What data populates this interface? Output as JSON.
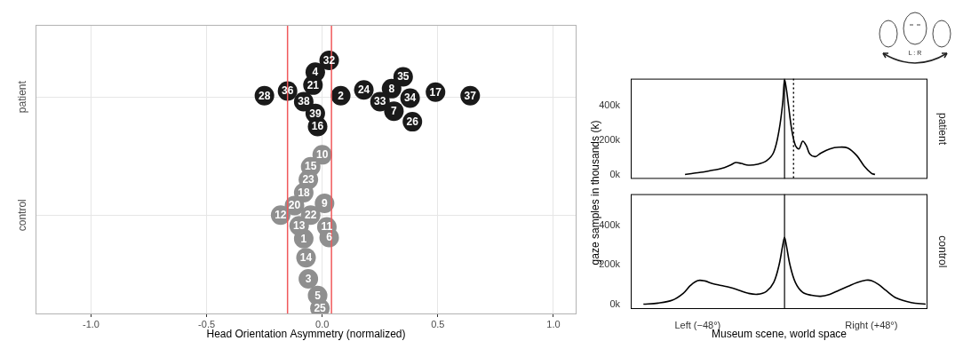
{
  "chart_data": [
    {
      "type": "scatter",
      "xlabel": "Head Orientation Asymmetry (normalized)",
      "xlim": [
        -1.24,
        1.1
      ],
      "xticks": [
        {
          "value": -1,
          "label": "-1.0"
        },
        {
          "value": -0.5,
          "label": "-0.5"
        },
        {
          "value": 0,
          "label": "0.0"
        },
        {
          "value": 0.5,
          "label": "0.5"
        },
        {
          "value": 1,
          "label": "1.0"
        }
      ],
      "ylim": [
        -0.84,
        1.61
      ],
      "yticks": [
        {
          "value": 0,
          "label": "control"
        },
        {
          "value": 1,
          "label": "patient"
        }
      ],
      "grid": true,
      "marker": "circle",
      "vlines": [
        {
          "value": -0.15,
          "color": "#f0595b"
        },
        {
          "value": 0.04,
          "color": "#f0595b"
        }
      ],
      "series": [
        {
          "color": "#1a1a1a",
          "labels": [
            "32",
            "4",
            "21",
            "36",
            "28",
            "2",
            "38",
            "39",
            "16",
            "24",
            "8",
            "35",
            "33",
            "34",
            "7",
            "26",
            "17",
            "37"
          ],
          "x": [
            0.03,
            -0.03,
            -0.04,
            -0.15,
            -0.25,
            0.08,
            -0.08,
            -0.03,
            -0.02,
            0.18,
            0.3,
            0.35,
            0.25,
            0.38,
            0.31,
            0.39,
            0.49,
            0.64
          ],
          "values": [
            1.31,
            1.21,
            1.1,
            1.05,
            1.01,
            1.01,
            0.96,
            0.86,
            0.75,
            1.06,
            1.07,
            1.17,
            0.96,
            0.99,
            0.88,
            0.79,
            1.04,
            1.01
          ]
        },
        {
          "color": "#8f8f8f",
          "labels": [
            "10",
            "15",
            "23",
            "18",
            "9",
            "20",
            "12",
            "22",
            "13",
            "11",
            "6",
            "1",
            "14",
            "3",
            "5",
            "25"
          ],
          "x": [
            0.0,
            -0.05,
            -0.06,
            -0.08,
            0.01,
            -0.12,
            -0.18,
            -0.05,
            -0.1,
            0.02,
            0.03,
            -0.08,
            -0.07,
            -0.06,
            -0.02,
            -0.01
          ],
          "values": [
            0.51,
            0.41,
            0.3,
            0.19,
            0.1,
            0.08,
            0.0,
            0.0,
            -0.09,
            -0.1,
            -0.19,
            -0.2,
            -0.36,
            -0.54,
            -0.68,
            -0.79
          ]
        }
      ]
    },
    {
      "type": "line",
      "xlabel": "Museum scene, world space",
      "ylabel": "gaze samples in thousands (k)",
      "icon_label": "L : R",
      "xlim": [
        -85,
        79
      ],
      "xticks": [
        {
          "value": -48,
          "label": "Left (−48°)"
        },
        {
          "value": 48,
          "label": "Right (+48°)"
        }
      ],
      "ylim": [
        -25,
        560
      ],
      "yticks": [
        {
          "value": 0,
          "label": "0k"
        },
        {
          "value": 200,
          "label": "200k"
        },
        {
          "value": 400,
          "label": "400k"
        }
      ],
      "grid": false,
      "color": "#000000",
      "panels": [
        {
          "name": "patient",
          "x": [
            -55,
            -50,
            -45,
            -40,
            -35,
            -30,
            -27,
            -24,
            -20,
            -15,
            -10,
            -6,
            -3,
            -1,
            0,
            1,
            2,
            4,
            6,
            8,
            10,
            12,
            14,
            17,
            20,
            25,
            30,
            35,
            40,
            44,
            48,
            50
          ],
          "values": [
            0,
            8,
            15,
            25,
            35,
            55,
            70,
            65,
            55,
            60,
            80,
            130,
            260,
            420,
            550,
            500,
            420,
            260,
            170,
            150,
            195,
            170,
            120,
            105,
            125,
            150,
            160,
            155,
            110,
            50,
            8,
            0
          ],
          "vlines": [
            {
              "value": 0,
              "line_style": "solid"
            },
            {
              "value": 5,
              "line_style": "dotted"
            }
          ]
        },
        {
          "name": "control",
          "x": [
            -78,
            -70,
            -62,
            -56,
            -52,
            -48,
            -44,
            -40,
            -35,
            -30,
            -25,
            -20,
            -15,
            -10,
            -6,
            -3,
            -1,
            0,
            1,
            3,
            6,
            10,
            15,
            20,
            25,
            30,
            35,
            40,
            45,
            48,
            52,
            56,
            62,
            70,
            78
          ],
          "values": [
            0,
            5,
            20,
            55,
            95,
            120,
            118,
            105,
            95,
            85,
            70,
            55,
            50,
            65,
            110,
            200,
            300,
            340,
            300,
            200,
            110,
            60,
            45,
            40,
            50,
            70,
            90,
            110,
            122,
            120,
            100,
            70,
            30,
            8,
            0
          ],
          "vlines": [
            {
              "value": 0,
              "line_style": "solid"
            }
          ]
        }
      ]
    }
  ]
}
